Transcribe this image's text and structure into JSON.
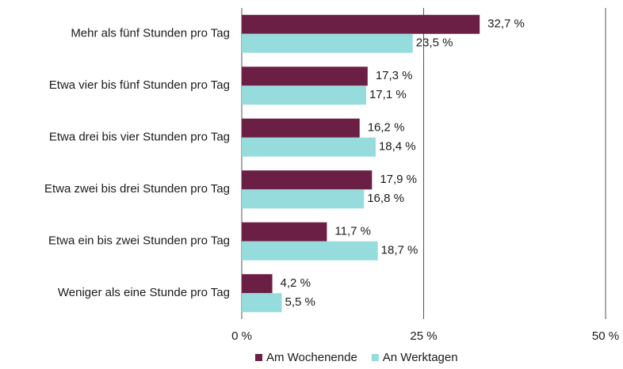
{
  "chart_data": {
    "type": "bar",
    "orientation": "horizontal",
    "categories": [
      "Mehr als fünf Stunden pro Tag",
      "Etwa vier bis fünf Stunden pro Tag",
      "Etwa drei bis vier Stunden pro Tag",
      "Etwa zwei bis drei Stunden pro Tag",
      "Etwa ein bis zwei Stunden pro Tag",
      "Weniger als eine Stunde pro Tag"
    ],
    "series": [
      {
        "name": "Am Wochenende",
        "color": "#6b1f45",
        "values": [
          32.7,
          17.3,
          16.2,
          17.9,
          11.7,
          4.2
        ],
        "value_labels": [
          "32,7 %",
          "17,3 %",
          "16,2 %",
          "17,9 %",
          "11,7 %",
          "4,2 %"
        ]
      },
      {
        "name": "An Werktagen",
        "color": "#96dcdc",
        "values": [
          23.5,
          17.1,
          18.4,
          16.8,
          18.7,
          5.5
        ],
        "value_labels": [
          "23,5 %",
          "17,1 %",
          "18,4 %",
          "16,8 %",
          "18,7 %",
          "5,5 %"
        ]
      }
    ],
    "xlim": [
      0,
      50
    ],
    "xticks": [
      {
        "value": 0,
        "label": "0 %"
      },
      {
        "value": 25,
        "label": "25 %"
      },
      {
        "value": 50,
        "label": "50 %"
      }
    ],
    "grid": true,
    "legend": "bottom"
  }
}
